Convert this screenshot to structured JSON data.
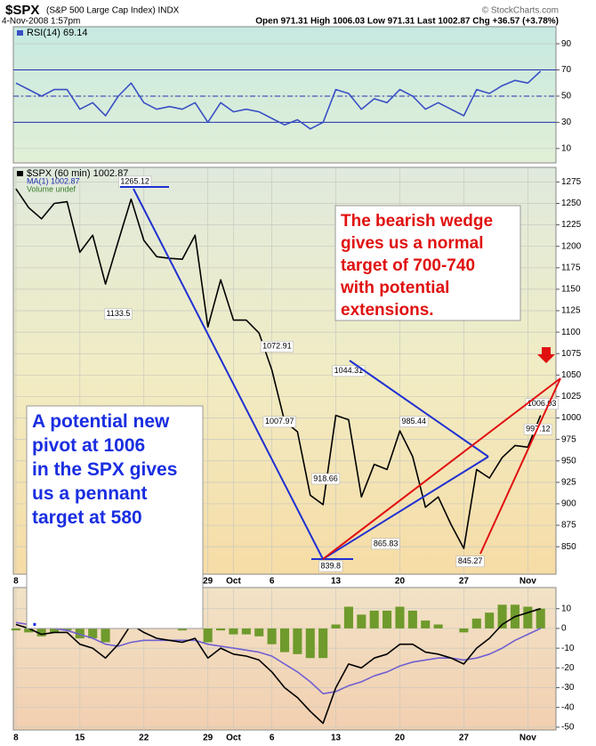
{
  "header": {
    "symbol": "$SPX",
    "name": "(S&P 500 Large Cap Index) INDX",
    "date": "4-Nov-2008 1:57pm",
    "stats": "Open 971.31   High 1006.03   Low 971.31   Last 1002.87   Chg +36.57 (+3.78%)",
    "credit": "© StockCharts.com"
  },
  "annotations": {
    "bearish": [
      "The bearish wedge",
      "gives us a normal",
      "target of 700-740",
      "with potential",
      "extensions."
    ],
    "pennant": [
      "A potential new",
      "pivot at 1006",
      "in the SPX gives",
      "us a pennant",
      "target at 580",
      "."
    ]
  },
  "chart_data": [
    {
      "type": "line",
      "x": [
        0,
        1,
        2,
        3,
        4,
        5,
        6,
        7,
        8,
        9,
        10,
        11,
        12,
        13,
        14,
        15,
        16,
        17,
        18,
        19,
        20,
        21,
        22,
        23,
        24,
        25,
        26,
        27,
        28,
        29,
        30,
        31,
        32,
        33,
        34,
        35,
        36,
        37,
        38,
        39,
        40,
        41
      ],
      "xlim": [
        -0.2,
        42.2
      ],
      "ylim": [
        -1,
        103
      ],
      "yticks": [
        10,
        30,
        50,
        70,
        90
      ],
      "reference_lines": [
        30,
        50,
        70
      ],
      "series": [
        {
          "name": "RSI(14) 69.14",
          "color": "#3a4fc4",
          "values": [
            60,
            55,
            50,
            55,
            55,
            40,
            45,
            35,
            50,
            60,
            45,
            40,
            42,
            40,
            45,
            30,
            45,
            38,
            40,
            38,
            33,
            28,
            32,
            25,
            30,
            55,
            52,
            40,
            48,
            45,
            55,
            50,
            40,
            45,
            40,
            35,
            55,
            52,
            58,
            62,
            60,
            69
          ]
        }
      ]
    },
    {
      "type": "line",
      "x": [
        0,
        1,
        2,
        3,
        4,
        5,
        6,
        7,
        8,
        9,
        10,
        11,
        12,
        13,
        14,
        15,
        16,
        17,
        18,
        19,
        20,
        21,
        22,
        23,
        24,
        25,
        26,
        27,
        28,
        29,
        30,
        31,
        32,
        33,
        34,
        35,
        36,
        37,
        38,
        39,
        40,
        41
      ],
      "xlim": [
        -0.2,
        42.2
      ],
      "ylim": [
        818,
        1292
      ],
      "yticks": [
        850,
        875,
        900,
        925,
        950,
        975,
        1000,
        1025,
        1050,
        1075,
        1100,
        1125,
        1150,
        1175,
        1200,
        1225,
        1250,
        1275
      ],
      "xticks": [
        {
          "value": 0,
          "label": "8"
        },
        {
          "value": 5,
          "label": "15"
        },
        {
          "value": 10,
          "label": "22"
        },
        {
          "value": 15,
          "label": "29"
        },
        {
          "value": 17,
          "label": "Oct"
        },
        {
          "value": 20,
          "label": "6"
        },
        {
          "value": 25,
          "label": "13"
        },
        {
          "value": 30,
          "label": "20"
        },
        {
          "value": 35,
          "label": "27"
        },
        {
          "value": 40,
          "label": "Nov"
        }
      ],
      "series": [
        {
          "name": "$SPX (60 min) 1002.87",
          "color": "#000000",
          "values": [
            1267,
            1245,
            1232,
            1250,
            1252,
            1193,
            1213,
            1156,
            1206,
            1255,
            1207,
            1188,
            1186,
            1185,
            1213,
            1106,
            1161,
            1114,
            1114,
            1099,
            1056,
            996,
            984,
            910,
            899,
            1003,
            998,
            908,
            946,
            940,
            985,
            955,
            896,
            908,
            876,
            848,
            940,
            930,
            954,
            968,
            966,
            1003
          ]
        }
      ],
      "legend_extra": [
        "MA(1) 1002.87",
        "Volume undef"
      ],
      "price_labels": {
        "x": [
          9.3,
          8.0,
          20.4,
          20.6,
          24.2,
          24.6,
          26.0,
          28.9,
          31.1,
          35.5,
          41.1,
          40.8
        ],
        "values": [
          1265.12,
          1133.5,
          1072.91,
          1007.97,
          918.66,
          839.8,
          1044.31,
          865.83,
          985.44,
          845.27,
          1006.03,
          997.12
        ]
      }
    },
    {
      "type": "line",
      "x": [
        0,
        1,
        2,
        3,
        4,
        5,
        6,
        7,
        8,
        9,
        10,
        11,
        12,
        13,
        14,
        15,
        16,
        17,
        18,
        19,
        20,
        21,
        22,
        23,
        24,
        25,
        26,
        27,
        28,
        29,
        30,
        31,
        32,
        33,
        34,
        35,
        36,
        37,
        38,
        39,
        40,
        41
      ],
      "xlim": [
        -0.2,
        42.2
      ],
      "ylim": [
        -51.4,
        20.7
      ],
      "yticks": [
        10,
        0,
        -10,
        -20,
        -30,
        -40,
        -50
      ],
      "xticks": [
        {
          "value": 0,
          "label": "8"
        },
        {
          "value": 5,
          "label": "15"
        },
        {
          "value": 10,
          "label": "22"
        },
        {
          "value": 15,
          "label": "29"
        },
        {
          "value": 17,
          "label": "Oct"
        },
        {
          "value": 20,
          "label": "6"
        },
        {
          "value": 25,
          "label": "13"
        },
        {
          "value": 30,
          "label": "20"
        },
        {
          "value": 35,
          "label": "27"
        },
        {
          "value": 40,
          "label": "Nov"
        }
      ],
      "series": [
        {
          "type": "bar",
          "color": "#6f9a2c",
          "values": [
            -1,
            -2,
            -4,
            -2,
            -1,
            -5,
            -5,
            -7,
            1,
            9,
            4,
            1,
            0,
            -1,
            1,
            -7,
            -1,
            -3,
            -3,
            -4,
            -8,
            -12,
            -13,
            -15,
            -15,
            2,
            11,
            7,
            9,
            9,
            11,
            9,
            4,
            2,
            0,
            -2,
            5,
            8,
            12,
            12,
            11,
            10
          ]
        },
        {
          "type": "line",
          "color": "#7060d0",
          "values": [
            3,
            2,
            1,
            0,
            -1,
            -3,
            -5,
            -8,
            -9,
            -7,
            -6,
            -6,
            -6,
            -6,
            -6,
            -8,
            -9,
            -10,
            -11,
            -12,
            -14,
            -18,
            -22,
            -27,
            -33,
            -32,
            -29,
            -27,
            -24,
            -22,
            -19,
            -17,
            -16,
            -15,
            -15,
            -16,
            -15,
            -13,
            -10,
            -6,
            -3,
            0
          ]
        },
        {
          "type": "line",
          "color": "#000000",
          "values": [
            2,
            0,
            -3,
            -2,
            -2,
            -8,
            -10,
            -15,
            -8,
            2,
            -2,
            -5,
            -6,
            -7,
            -5,
            -15,
            -10,
            -13,
            -14,
            -16,
            -22,
            -30,
            -35,
            -42,
            -48,
            -30,
            -18,
            -20,
            -15,
            -13,
            -8,
            -8,
            -12,
            -13,
            -15,
            -18,
            -10,
            -5,
            2,
            6,
            8,
            10
          ]
        }
      ]
    }
  ]
}
